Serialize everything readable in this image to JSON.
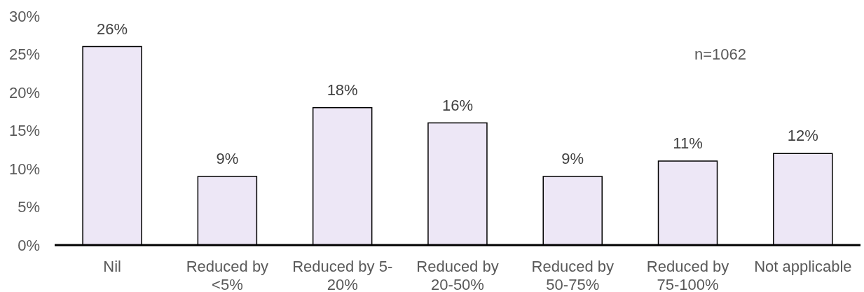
{
  "chart_data": {
    "type": "bar",
    "categories": [
      "Nil",
      "Reduced by <5%",
      "Reduced by 5-20%",
      "Reduced by 20-50%",
      "Reduced by 50-75%",
      "Reduced by 75-100%",
      "Not applicable"
    ],
    "values": [
      26,
      9,
      18,
      16,
      9,
      11,
      12
    ],
    "value_labels": [
      "26%",
      "9%",
      "18%",
      "16%",
      "9%",
      "11%",
      "12%"
    ],
    "color": "#ede7f6",
    "ylim": [
      0,
      30
    ],
    "yticks": [
      {
        "value": 0,
        "label": "0%"
      },
      {
        "value": 5,
        "label": "5%"
      },
      {
        "value": 10,
        "label": "10%"
      },
      {
        "value": 15,
        "label": "15%"
      },
      {
        "value": 20,
        "label": "20%"
      },
      {
        "value": 25,
        "label": "25%"
      },
      {
        "value": 30,
        "label": "30%"
      }
    ],
    "annotations": [
      "n=1062"
    ]
  }
}
